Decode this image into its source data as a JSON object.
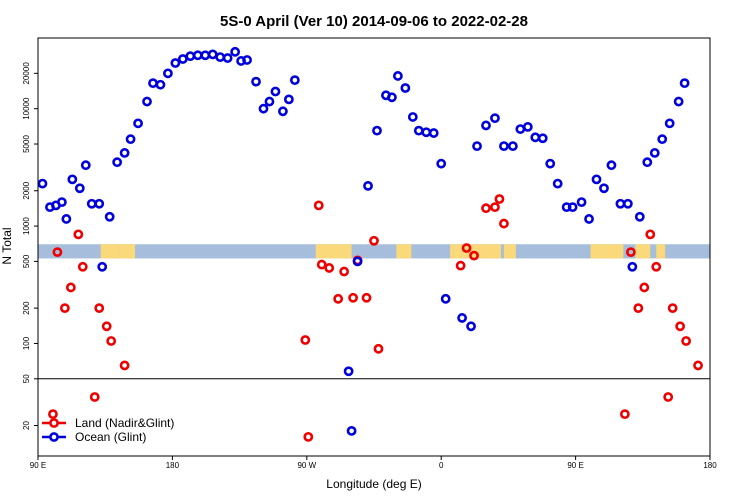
{
  "chart_data": {
    "type": "scatter",
    "title": "5S-0 April (Ver 10)   2014-09-06 to 2022-02-28",
    "xlabel": "Longitude (deg E)",
    "ylabel": "N Total",
    "x_scale": "cyclic longitude, 90E to 180 (450 deg span)",
    "y_scale": "log",
    "xlim": [
      90,
      540
    ],
    "ylim": [
      11,
      40000
    ],
    "x_ticks": [
      {
        "value": 90,
        "label": "90 E"
      },
      {
        "value": 180,
        "label": "180"
      },
      {
        "value": 270,
        "label": "90 W"
      },
      {
        "value": 360,
        "label": "0"
      },
      {
        "value": 450,
        "label": "90 E"
      },
      {
        "value": 540,
        "label": "180"
      }
    ],
    "y_ticks": [
      20,
      50,
      100,
      200,
      500,
      1000,
      2000,
      5000,
      10000,
      20000
    ],
    "reference_lines": [
      50
    ],
    "band": {
      "y_min": 530,
      "y_max": 700,
      "color": "#a6bddb",
      "land_color": "#f9d97a"
    },
    "land_spans": [
      [
        132,
        144
      ],
      [
        144,
        150
      ],
      [
        146,
        153
      ],
      [
        147,
        155
      ],
      [
        276,
        300
      ],
      [
        330,
        340
      ],
      [
        366,
        368
      ],
      [
        368,
        400
      ],
      [
        402,
        410
      ],
      [
        460,
        482
      ],
      [
        490,
        500
      ],
      [
        504,
        510
      ]
    ],
    "legend": {
      "position": "bottom-left"
    },
    "series": [
      {
        "name": "Land (Nadir&Glint)",
        "color": "#ee0000",
        "points": [
          [
            100,
            25
          ],
          [
            103,
            600
          ],
          [
            108,
            200
          ],
          [
            112,
            300
          ],
          [
            117,
            850
          ],
          [
            120,
            450
          ],
          [
            128,
            35
          ],
          [
            131,
            200
          ],
          [
            136,
            140
          ],
          [
            139,
            105
          ],
          [
            148,
            65
          ],
          [
            269,
            107
          ],
          [
            271,
            16
          ],
          [
            278,
            1500
          ],
          [
            280,
            470
          ],
          [
            285,
            440
          ],
          [
            291,
            240
          ],
          [
            295,
            410
          ],
          [
            301,
            245
          ],
          [
            304,
            510
          ],
          [
            310,
            245
          ],
          [
            315,
            750
          ],
          [
            318,
            90
          ],
          [
            373,
            460
          ],
          [
            377,
            650
          ],
          [
            382,
            560
          ],
          [
            390,
            1420
          ],
          [
            396,
            1450
          ],
          [
            399,
            1700
          ],
          [
            402,
            1050
          ],
          [
            483,
            25
          ],
          [
            487,
            600
          ],
          [
            492,
            200
          ],
          [
            496,
            300
          ],
          [
            500,
            850
          ],
          [
            504,
            450
          ],
          [
            512,
            35
          ],
          [
            515,
            200
          ],
          [
            520,
            140
          ],
          [
            524,
            105
          ],
          [
            532,
            65
          ]
        ]
      },
      {
        "name": "Ocean (Glint)",
        "color": "#0000dd",
        "points": [
          [
            93,
            2300
          ],
          [
            98,
            1450
          ],
          [
            102,
            1500
          ],
          [
            106,
            1600
          ],
          [
            109,
            1150
          ],
          [
            113,
            2500
          ],
          [
            118,
            2100
          ],
          [
            122,
            3300
          ],
          [
            126,
            1550
          ],
          [
            131,
            1550
          ],
          [
            133,
            450
          ],
          [
            138,
            1200
          ],
          [
            143,
            3500
          ],
          [
            148,
            4200
          ],
          [
            152,
            5500
          ],
          [
            157,
            7500
          ],
          [
            163,
            11500
          ],
          [
            167,
            16500
          ],
          [
            172,
            16000
          ],
          [
            177,
            20000
          ],
          [
            182,
            24500
          ],
          [
            187,
            26500
          ],
          [
            192,
            28000
          ],
          [
            197,
            28500
          ],
          [
            202,
            28500
          ],
          [
            207,
            29000
          ],
          [
            212,
            27500
          ],
          [
            217,
            27000
          ],
          [
            222,
            30500
          ],
          [
            226,
            25500
          ],
          [
            230,
            26000
          ],
          [
            236,
            17000
          ],
          [
            241,
            10000
          ],
          [
            245,
            11500
          ],
          [
            249,
            14000
          ],
          [
            254,
            9500
          ],
          [
            258,
            12000
          ],
          [
            262,
            17500
          ],
          [
            298,
            58
          ],
          [
            300,
            18
          ],
          [
            304,
            500
          ],
          [
            311,
            2200
          ],
          [
            317,
            6500
          ],
          [
            323,
            13000
          ],
          [
            327,
            12500
          ],
          [
            331,
            19000
          ],
          [
            336,
            15000
          ],
          [
            341,
            8500
          ],
          [
            345,
            6500
          ],
          [
            350,
            6300
          ],
          [
            355,
            6200
          ],
          [
            360,
            3400
          ],
          [
            363,
            240
          ],
          [
            374,
            165
          ],
          [
            380,
            140
          ],
          [
            384,
            4800
          ],
          [
            390,
            7200
          ],
          [
            396,
            8300
          ],
          [
            402,
            4800
          ],
          [
            408,
            4800
          ],
          [
            413,
            6700
          ],
          [
            418,
            7000
          ],
          [
            423,
            5700
          ],
          [
            428,
            5600
          ],
          [
            433,
            3400
          ],
          [
            438,
            2300
          ],
          [
            444,
            1450
          ],
          [
            448,
            1450
          ],
          [
            454,
            1600
          ],
          [
            459,
            1150
          ],
          [
            464,
            2500
          ],
          [
            469,
            2100
          ],
          [
            474,
            3300
          ],
          [
            480,
            1550
          ],
          [
            485,
            1550
          ],
          [
            488,
            450
          ],
          [
            493,
            1200
          ],
          [
            498,
            3500
          ],
          [
            503,
            4200
          ],
          [
            508,
            5500
          ],
          [
            513,
            7500
          ],
          [
            519,
            11500
          ],
          [
            523,
            16500
          ]
        ]
      }
    ]
  }
}
